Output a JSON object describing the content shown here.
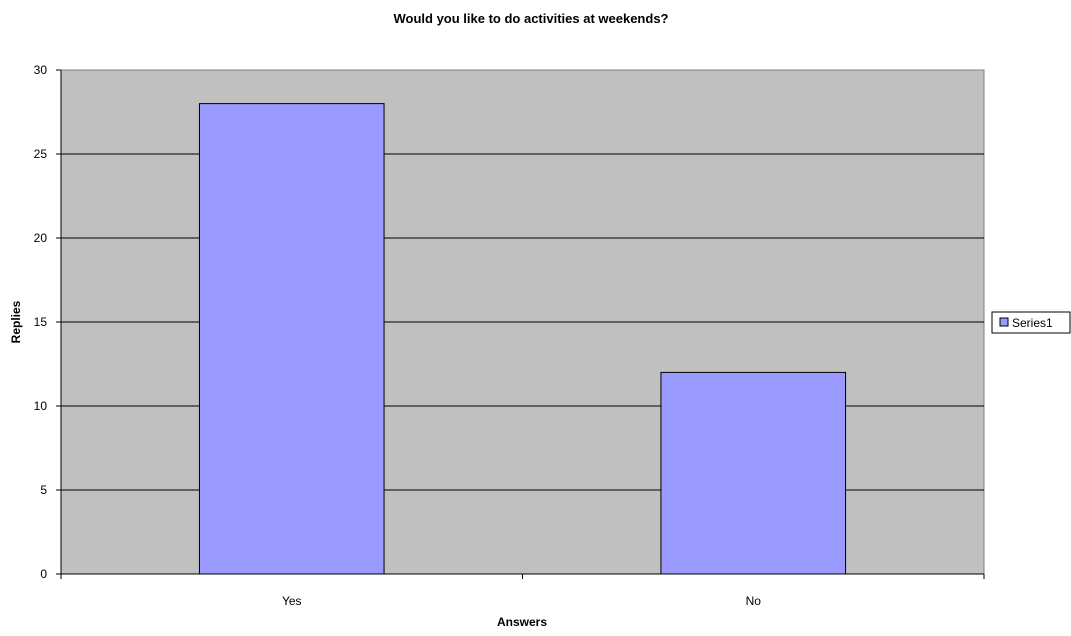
{
  "chart_data": {
    "type": "bar",
    "title": "Would you like to do activities at weekends?",
    "xlabel": "Answers",
    "ylabel": "Replies",
    "categories": [
      "Yes",
      "No"
    ],
    "series": [
      {
        "name": "Series1",
        "values": [
          28,
          12
        ],
        "color": "#9999ff"
      }
    ],
    "ylim": [
      0,
      30
    ],
    "yticks": [
      0,
      5,
      10,
      15,
      20,
      25,
      30
    ],
    "grid": true,
    "legend_position": "right",
    "plot_background": "#c0c0c0"
  }
}
